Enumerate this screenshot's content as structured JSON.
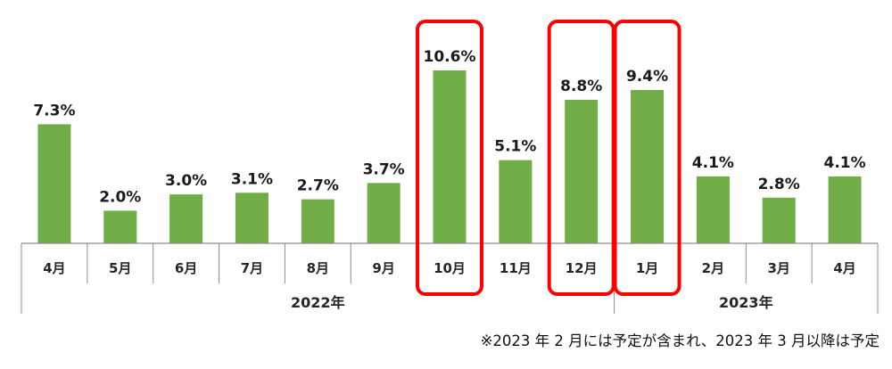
{
  "chart_data": {
    "type": "bar",
    "categories": [
      "4月",
      "5月",
      "6月",
      "7月",
      "8月",
      "9月",
      "10月",
      "11月",
      "12月",
      "1月",
      "2月",
      "3月",
      "4月"
    ],
    "values": [
      7.3,
      2.0,
      3.0,
      3.1,
      2.7,
      3.7,
      10.6,
      5.1,
      8.8,
      9.4,
      4.1,
      2.8,
      4.1
    ],
    "value_labels": [
      "7.3%",
      "2.0%",
      "3.0%",
      "3.1%",
      "2.7%",
      "3.7%",
      "10.6%",
      "5.1%",
      "8.8%",
      "9.4%",
      "4.1%",
      "2.8%",
      "4.1%"
    ],
    "year_groups": [
      {
        "label": "2022年",
        "from": 0,
        "to": 8
      },
      {
        "label": "2023年",
        "from": 9,
        "to": 12
      }
    ],
    "highlighted": [
      6,
      8,
      9
    ],
    "ylim": [
      0,
      11.5
    ],
    "bar_color": "#70ad47",
    "highlight_color": "#ff0000",
    "axis_color": "#8c8c8c"
  },
  "footnote": "※2023 年 2 月には予定が含まれ、2023 年 3 月以降は予定"
}
